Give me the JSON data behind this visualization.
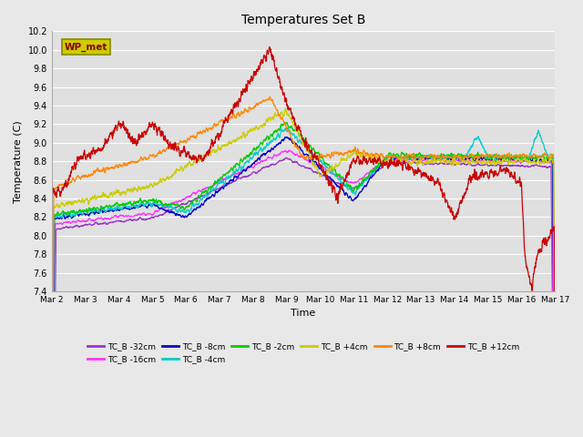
{
  "title": "Temperatures Set B",
  "xlabel": "Time",
  "ylabel": "Temperature (C)",
  "ylim": [
    7.4,
    10.2
  ],
  "fig_bg_color": "#e8e8e8",
  "plot_bg_color": "#e0e0e0",
  "series": [
    {
      "label": "TC_B -32cm",
      "color": "#9933cc"
    },
    {
      "label": "TC_B -16cm",
      "color": "#ff33ff"
    },
    {
      "label": "TC_B -8cm",
      "color": "#0000cc"
    },
    {
      "label": "TC_B -4cm",
      "color": "#00cccc"
    },
    {
      "label": "TC_B -2cm",
      "color": "#00cc00"
    },
    {
      "label": "TC_B +4cm",
      "color": "#cccc00"
    },
    {
      "label": "TC_B +8cm",
      "color": "#ff8800"
    },
    {
      "label": "TC_B +12cm",
      "color": "#cc0000"
    }
  ],
  "xtick_labels": [
    "Mar 2",
    "Mar 3",
    "Mar 4",
    "Mar 5",
    "Mar 6",
    "Mar 7",
    "Mar 8",
    "Mar 9",
    "Mar 10",
    "Mar 11",
    "Mar 12",
    "Mar 13",
    "Mar 14",
    "Mar 15",
    "Mar 16",
    "Mar 17"
  ],
  "wp_met_box_facecolor": "#cccc00",
  "wp_met_box_edgecolor": "#888800",
  "wp_met_text_color": "#880000",
  "grid_color": "#ffffff",
  "n_points": 2400,
  "seed": 42
}
